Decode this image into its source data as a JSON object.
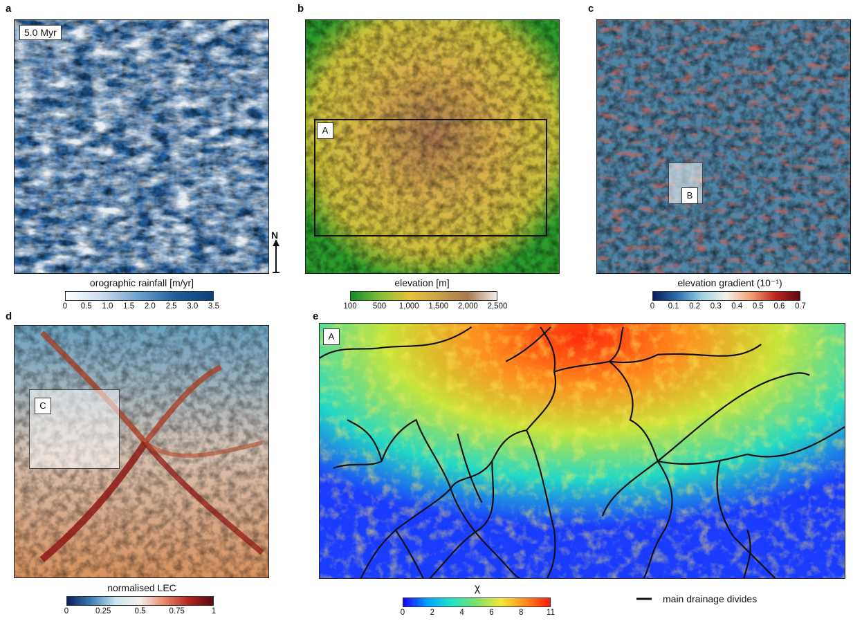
{
  "panels": {
    "a": {
      "letter": "a",
      "time_label": "5.0 Myr",
      "north_label": "N",
      "colorbar_title": "orographic rainfall [m/yr]",
      "ticks": [
        "0",
        "0.5",
        "1.0",
        "1.5",
        "2.0",
        "2.5",
        "3.0",
        "3.5"
      ]
    },
    "b": {
      "letter": "b",
      "box_label": "A",
      "colorbar_title": "elevation [m]",
      "ticks": [
        "100",
        "500",
        "1,000",
        "1,500",
        "2,000",
        "2,500"
      ]
    },
    "c": {
      "letter": "c",
      "box_label": "B",
      "colorbar_title": "elevation gradient (10⁻¹)",
      "ticks": [
        "0",
        "0.1",
        "0.2",
        "0.3",
        "0.4",
        "0.5",
        "0.6",
        "0.7"
      ]
    },
    "d": {
      "letter": "d",
      "box_label": "C",
      "colorbar_title": "normalised LEC",
      "ticks": [
        "0",
        "0.25",
        "0.5",
        "0.75",
        "1"
      ]
    },
    "e": {
      "letter": "e",
      "box_label": "A",
      "colorbar_title": "χ",
      "ticks": [
        "0",
        "2",
        "4",
        "6",
        "8",
        "11"
      ],
      "legend_label": "main drainage divides"
    }
  },
  "colors": {
    "rain_ramp": [
      "#ffffff",
      "#c9dcee",
      "#6aa0cc",
      "#1f5c9a",
      "#0d3f78"
    ],
    "elev_ramp": [
      "#118c26",
      "#7fbf3a",
      "#e8c23a",
      "#c9a24a",
      "#a9784e",
      "#f3ede6"
    ],
    "grad_ramp": [
      "#0b1a5c",
      "#2a6fb0",
      "#9ed1e6",
      "#f4f1e6",
      "#f2a073",
      "#c0261f",
      "#5a0a14"
    ],
    "lec_ramp": [
      "#0b1a5c",
      "#3b7fb8",
      "#cde8ef",
      "#f4f1ec",
      "#e9886a",
      "#b3241f",
      "#5a0a14"
    ],
    "chi_ramp": [
      "#1a00ff",
      "#00a5ff",
      "#22e3c6",
      "#7fe06a",
      "#f6e83a",
      "#ff8a1c",
      "#ff1a0a"
    ],
    "divide": "#111111"
  }
}
